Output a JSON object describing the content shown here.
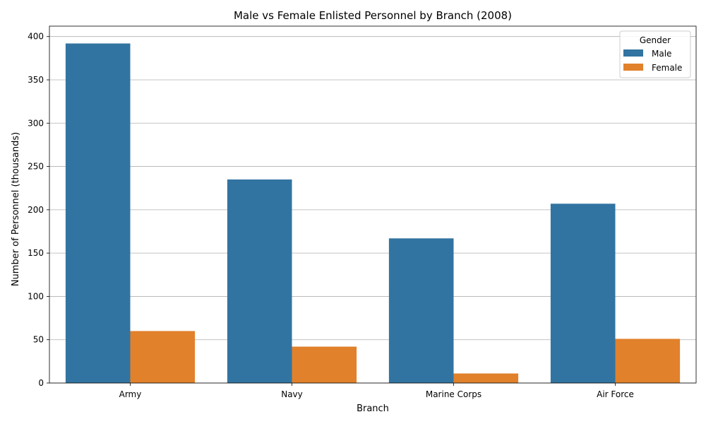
{
  "chart_data": {
    "type": "bar",
    "title": "Male vs Female Enlisted Personnel by Branch (2008)",
    "xlabel": "Branch",
    "ylabel": "Number of Personnel (thousands)",
    "categories": [
      "Army",
      "Navy",
      "Marine Corps",
      "Air Force"
    ],
    "series": [
      {
        "name": "Male",
        "color": "#3274a1",
        "values": [
          392,
          235,
          167,
          207
        ]
      },
      {
        "name": "Female",
        "color": "#e1812c",
        "values": [
          60,
          42,
          11,
          51
        ]
      }
    ],
    "ylim": [
      0,
      412
    ],
    "yticks": [
      0,
      50,
      100,
      150,
      200,
      250,
      300,
      350,
      400
    ],
    "grid": "horizontal",
    "legend": {
      "title": "Gender",
      "placement": "top-right"
    }
  }
}
